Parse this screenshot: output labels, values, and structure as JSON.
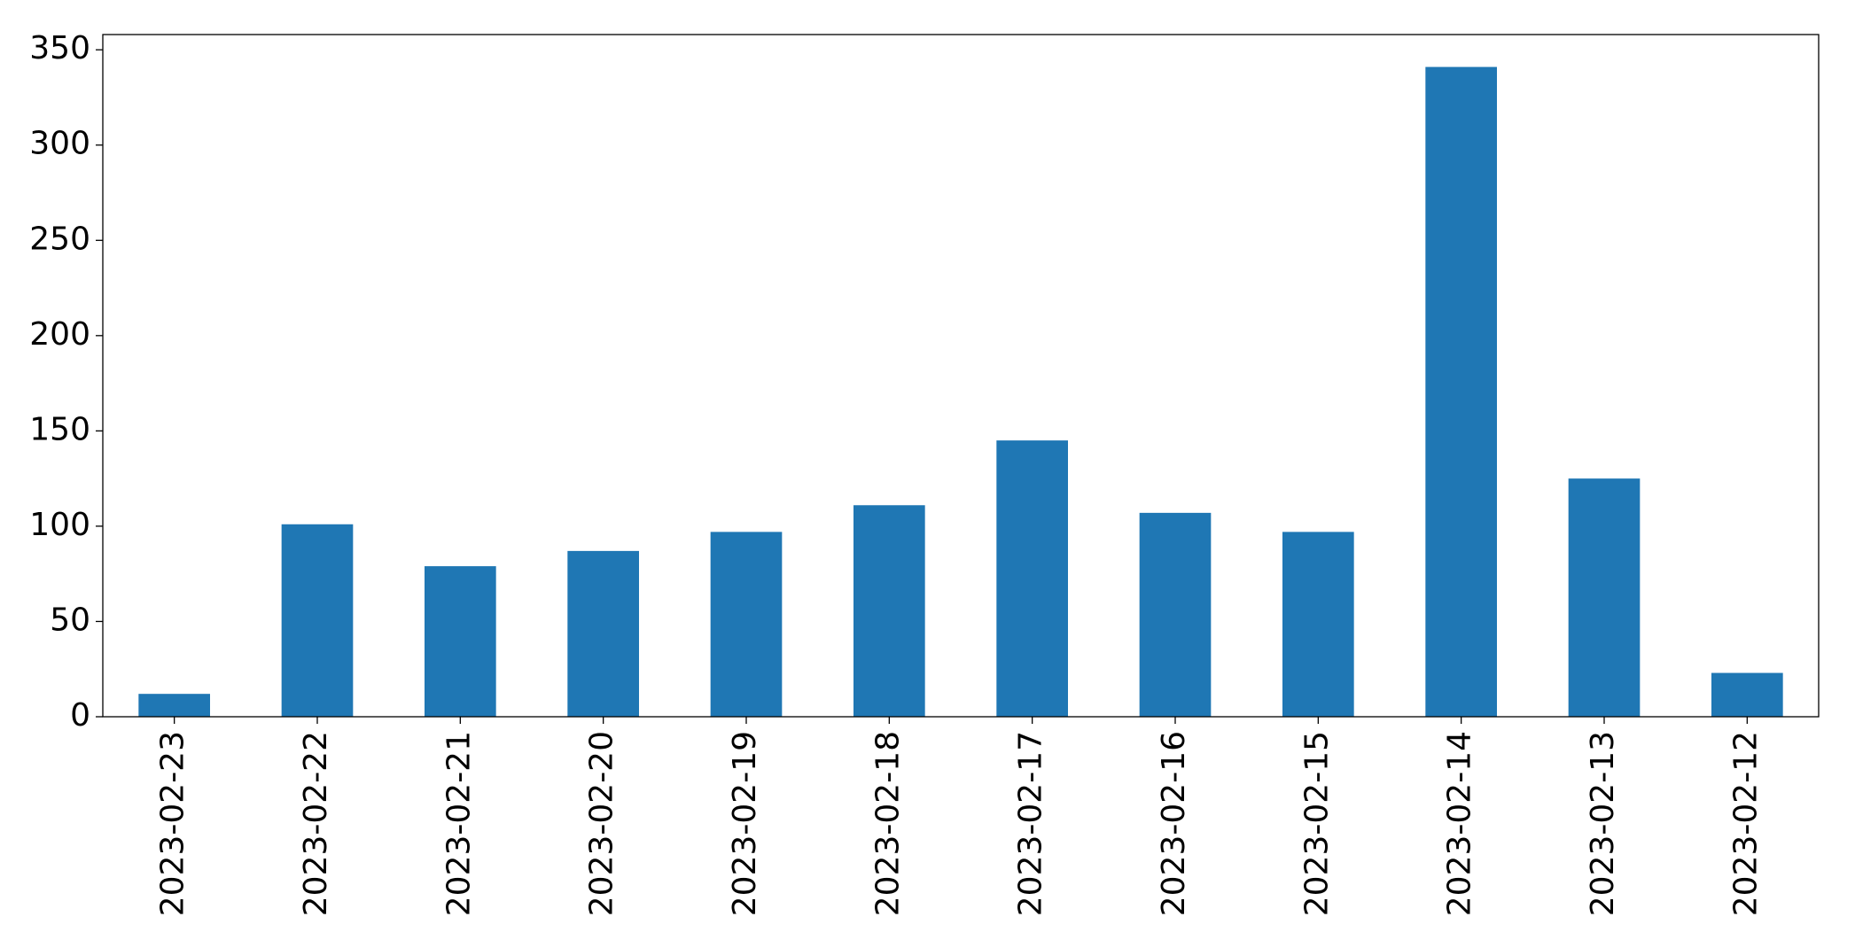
{
  "chart_data": {
    "type": "bar",
    "categories": [
      "2023-02-23",
      "2023-02-22",
      "2023-02-21",
      "2023-02-20",
      "2023-02-19",
      "2023-02-18",
      "2023-02-17",
      "2023-02-16",
      "2023-02-15",
      "2023-02-14",
      "2023-02-13",
      "2023-02-12"
    ],
    "values": [
      12,
      101,
      79,
      87,
      97,
      111,
      145,
      107,
      97,
      341,
      125,
      23
    ],
    "color": "#1f77b4",
    "ylim": [
      0,
      358
    ],
    "yticks": [
      0,
      50,
      100,
      150,
      200,
      250,
      300,
      350
    ],
    "grid": false
  }
}
